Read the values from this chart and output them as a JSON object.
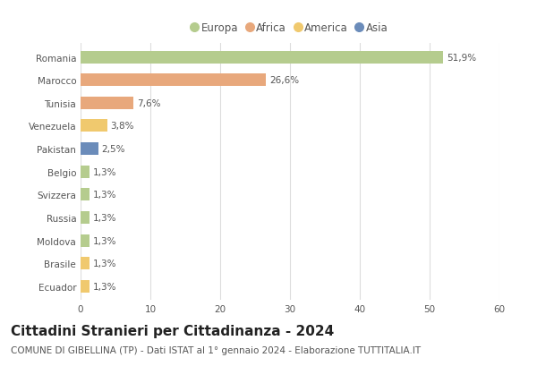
{
  "categories": [
    "Romania",
    "Marocco",
    "Tunisia",
    "Venezuela",
    "Pakistan",
    "Belgio",
    "Svizzera",
    "Russia",
    "Moldova",
    "Brasile",
    "Ecuador"
  ],
  "values": [
    51.9,
    26.6,
    7.6,
    3.8,
    2.5,
    1.3,
    1.3,
    1.3,
    1.3,
    1.3,
    1.3
  ],
  "labels": [
    "51,9%",
    "26,6%",
    "7,6%",
    "3,8%",
    "2,5%",
    "1,3%",
    "1,3%",
    "1,3%",
    "1,3%",
    "1,3%",
    "1,3%"
  ],
  "colors": [
    "#b5cc8e",
    "#e8a87c",
    "#e8a87c",
    "#f0c96e",
    "#6b8cba",
    "#b5cc8e",
    "#b5cc8e",
    "#b5cc8e",
    "#b5cc8e",
    "#f0c96e",
    "#f0c96e"
  ],
  "legend_labels": [
    "Europa",
    "Africa",
    "America",
    "Asia"
  ],
  "legend_colors": [
    "#b5cc8e",
    "#e8a87c",
    "#f0c96e",
    "#6b8cba"
  ],
  "title": "Cittadini Stranieri per Cittadinanza - 2024",
  "subtitle": "COMUNE DI GIBELLINA (TP) - Dati ISTAT al 1° gennaio 2024 - Elaborazione TUTTITALIA.IT",
  "xlim": [
    0,
    60
  ],
  "xticks": [
    0,
    10,
    20,
    30,
    40,
    50,
    60
  ],
  "background_color": "#ffffff",
  "grid_color": "#dddddd",
  "bar_height": 0.55,
  "title_fontsize": 11,
  "subtitle_fontsize": 7.5,
  "label_fontsize": 7.5,
  "tick_fontsize": 7.5,
  "legend_fontsize": 8.5
}
